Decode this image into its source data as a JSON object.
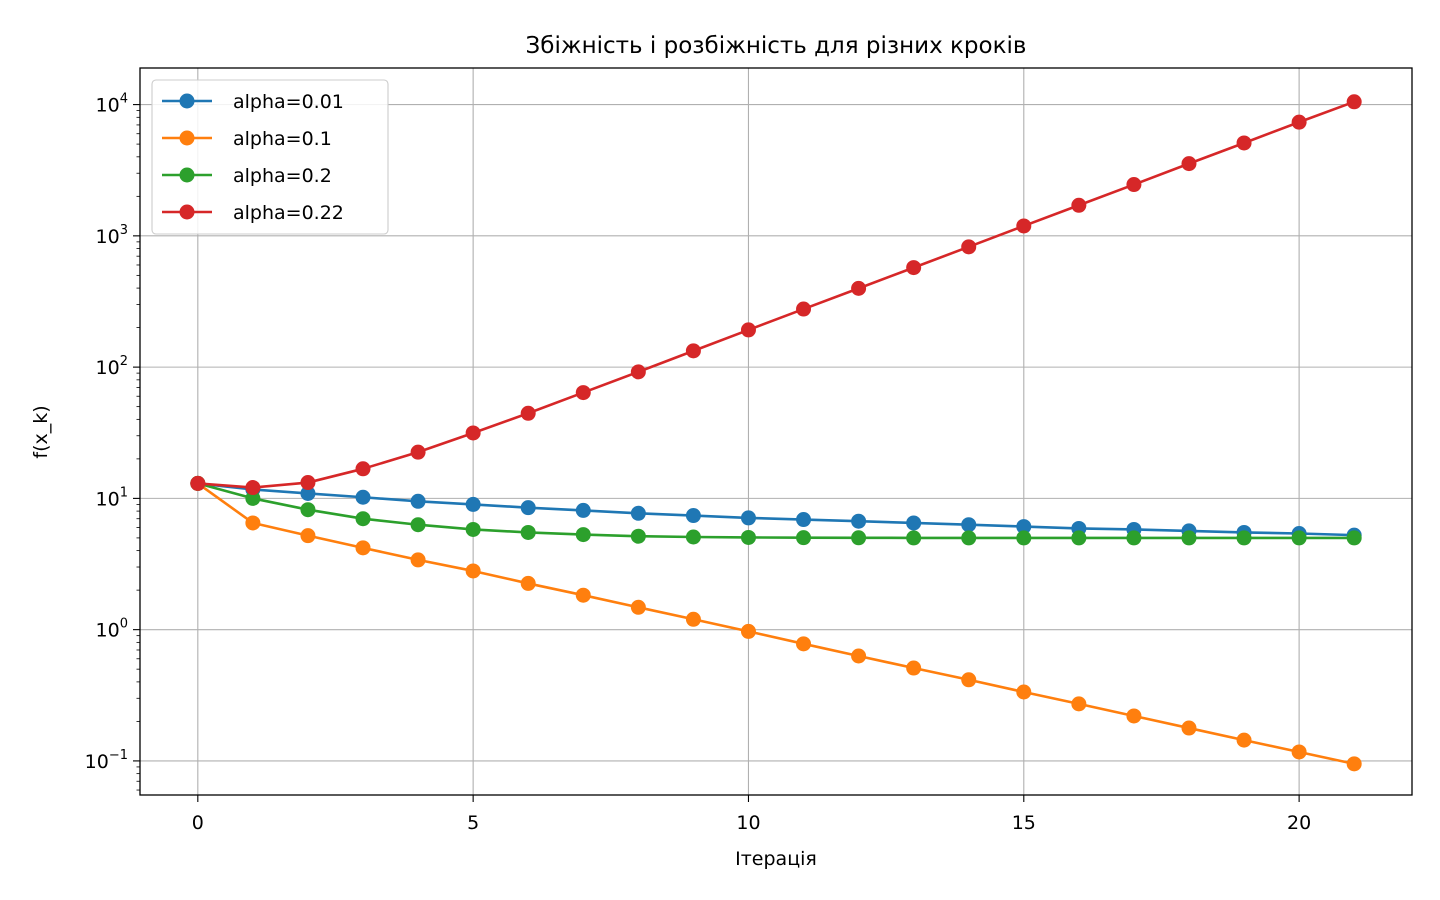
{
  "chart_data": {
    "type": "line",
    "title": "Збіжність і розбіжність для різних кроків",
    "xlabel": "Ітерація",
    "ylabel": "f(x_k)",
    "yscale": "log",
    "xlim": [
      -1.05,
      22.05
    ],
    "ylim": [
      0.055,
      19000
    ],
    "x_ticks": [
      0,
      5,
      10,
      15,
      20
    ],
    "x_tick_labels": [
      "0",
      "5",
      "10",
      "15",
      "20"
    ],
    "y_ticks": [
      0.1,
      1,
      10,
      100,
      1000,
      10000
    ],
    "y_tick_labels": [
      {
        "base": "10",
        "exp": "−1"
      },
      {
        "base": "10",
        "exp": "0"
      },
      {
        "base": "10",
        "exp": "1"
      },
      {
        "base": "10",
        "exp": "2"
      },
      {
        "base": "10",
        "exp": "3"
      },
      {
        "base": "10",
        "exp": "4"
      }
    ],
    "grid": true,
    "legend_position": "top-left",
    "x": [
      0,
      1,
      2,
      3,
      4,
      5,
      6,
      7,
      8,
      9,
      10,
      11,
      12,
      13,
      14,
      15,
      16,
      17,
      18,
      19,
      20,
      21
    ],
    "series": [
      {
        "name": "alpha=0.01",
        "color": "#1f77b4",
        "values": [
          13.0,
          11.7,
          10.9,
          10.2,
          9.5,
          9.0,
          8.5,
          8.1,
          7.7,
          7.4,
          7.1,
          6.9,
          6.7,
          6.5,
          6.3,
          6.1,
          5.9,
          5.8,
          5.65,
          5.5,
          5.4,
          5.25
        ]
      },
      {
        "name": "alpha=0.1",
        "color": "#ff7f0e",
        "values": [
          13.0,
          6.5,
          5.2,
          4.2,
          3.4,
          2.8,
          2.25,
          1.83,
          1.48,
          1.2,
          0.97,
          0.78,
          0.63,
          0.51,
          0.415,
          0.335,
          0.272,
          0.22,
          0.178,
          0.144,
          0.117,
          0.095
        ]
      },
      {
        "name": "alpha=0.2",
        "color": "#2ca02c",
        "values": [
          13.0,
          10.0,
          8.2,
          7.0,
          6.3,
          5.8,
          5.5,
          5.3,
          5.15,
          5.08,
          5.04,
          5.02,
          5.01,
          5.0,
          5.0,
          5.0,
          5.0,
          5.0,
          5.0,
          5.0,
          5.0,
          5.0
        ]
      },
      {
        "name": "alpha=0.22",
        "color": "#d62728",
        "values": [
          13.0,
          12.1,
          13.2,
          16.8,
          22.5,
          31.5,
          44.5,
          64.0,
          92.0,
          133.0,
          192.0,
          277.0,
          398.0,
          573.0,
          825.0,
          1190.0,
          1710.0,
          2460.0,
          3550.0,
          5100.0,
          7350.0,
          10500.0
        ]
      }
    ]
  }
}
